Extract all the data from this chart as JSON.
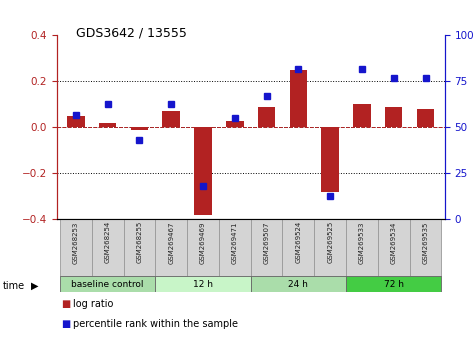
{
  "title": "GDS3642 / 13555",
  "samples": [
    "GSM268253",
    "GSM268254",
    "GSM268255",
    "GSM269467",
    "GSM269469",
    "GSM269471",
    "GSM269507",
    "GSM269524",
    "GSM269525",
    "GSM269533",
    "GSM269534",
    "GSM269535"
  ],
  "log_ratio": [
    0.05,
    0.02,
    -0.01,
    0.07,
    -0.38,
    0.03,
    0.09,
    0.25,
    -0.28,
    0.1,
    0.09,
    0.08
  ],
  "pct_rank": [
    57,
    63,
    43,
    63,
    18,
    55,
    67,
    82,
    13,
    82,
    77,
    77
  ],
  "bar_color": "#b22222",
  "dot_color": "#1515cc",
  "ylim": [
    -0.4,
    0.4
  ],
  "bar_width": 0.55,
  "groups": [
    {
      "label": "baseline control",
      "start": 0,
      "end": 3,
      "color": "#aaddaa"
    },
    {
      "label": "12 h",
      "start": 3,
      "end": 6,
      "color": "#ccffcc"
    },
    {
      "label": "24 h",
      "start": 6,
      "end": 9,
      "color": "#aaddaa"
    },
    {
      "label": "72 h",
      "start": 9,
      "end": 12,
      "color": "#44cc44"
    }
  ],
  "legend_log_ratio": "log ratio",
  "legend_pct": "percentile rank within the sample",
  "time_label": "time"
}
